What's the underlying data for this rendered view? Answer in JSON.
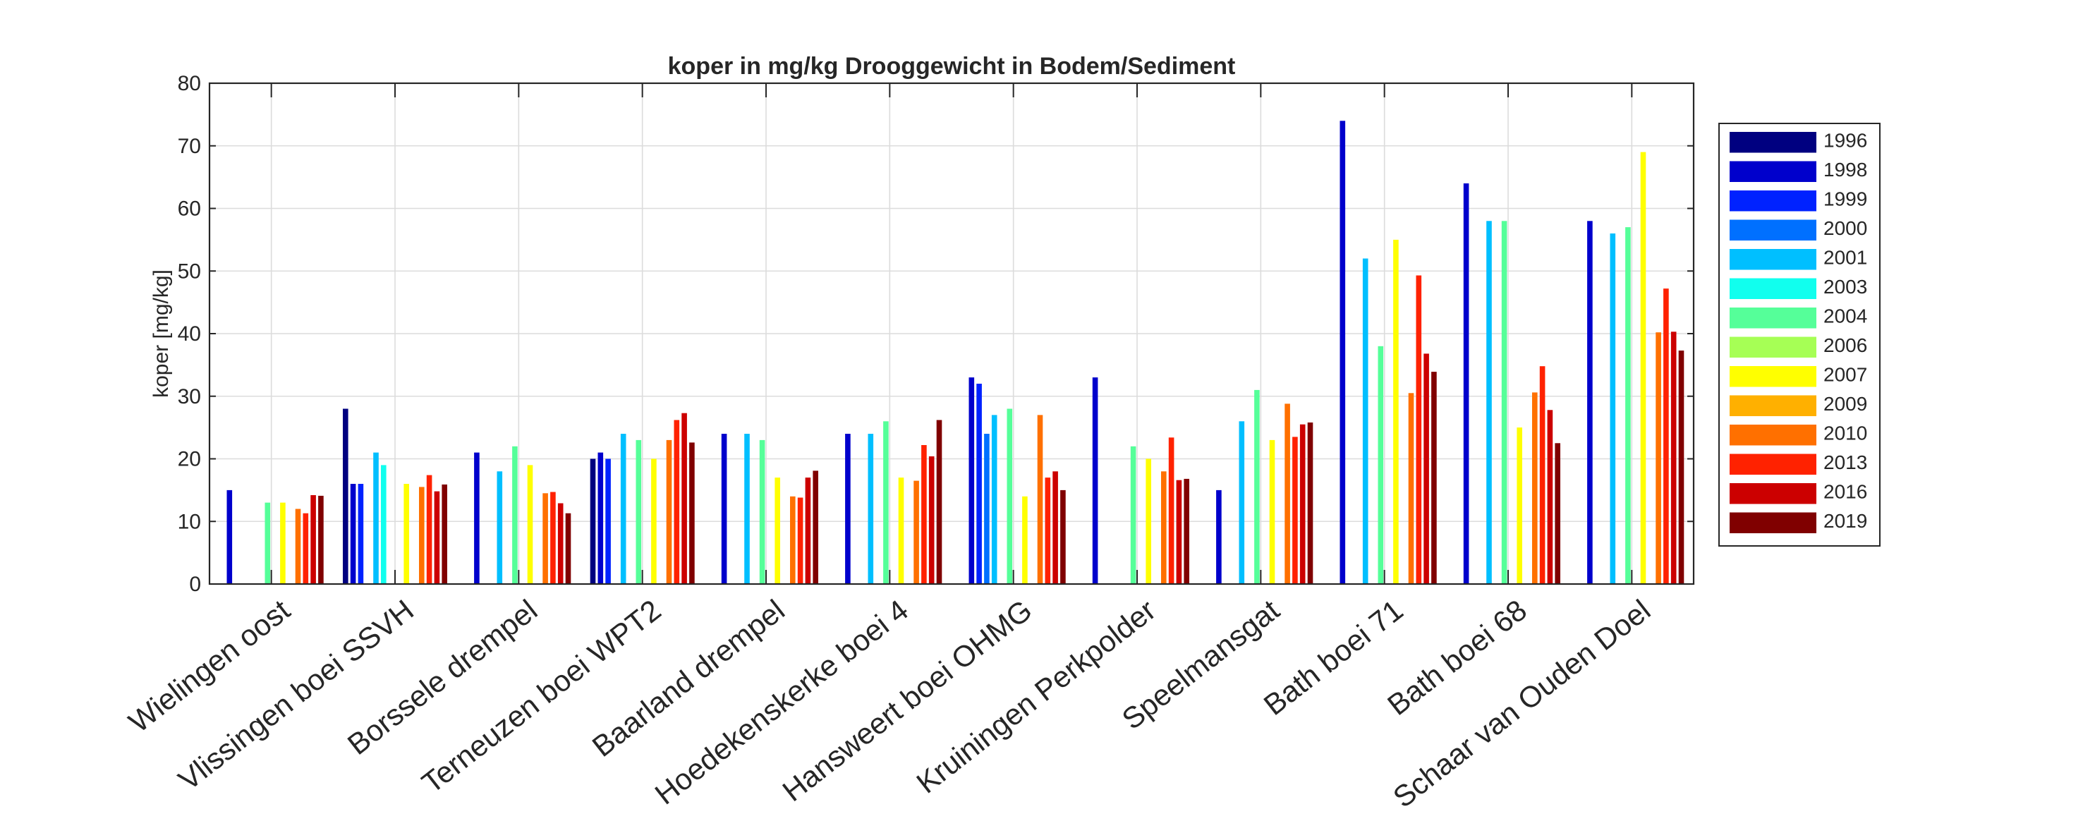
{
  "chart_data": {
    "type": "bar",
    "title": "koper in mg/kg Drooggewicht in Bodem/Sediment",
    "xlabel": "",
    "ylabel": "koper [mg/kg]",
    "ylim": [
      0,
      80
    ],
    "yticks": [
      0,
      10,
      20,
      30,
      40,
      50,
      60,
      70,
      80
    ],
    "grid": true,
    "legend_position": "right",
    "categories": [
      "Wielingen oost",
      "Vlissingen boei SSVH",
      "Borssele drempel",
      "Terneuzen boei WPT2",
      "Baarland drempel",
      "Hoedekenskerke boei 4",
      "Hansweert boei OHMG",
      "Kruiningen Perkpolder",
      "Speelmansgat",
      "Bath boei 71",
      "Bath boei 68",
      "Schaar van Ouden Doel"
    ],
    "series": [
      {
        "name": "1996",
        "color": "#000080",
        "values": [
          null,
          28,
          null,
          20,
          null,
          null,
          null,
          null,
          null,
          null,
          null,
          null
        ]
      },
      {
        "name": "1998",
        "color": "#0000CC",
        "values": [
          15,
          16,
          21,
          21,
          24,
          24,
          33,
          33,
          15,
          74,
          64,
          58
        ]
      },
      {
        "name": "1999",
        "color": "#0022FF",
        "values": [
          null,
          16,
          null,
          20,
          null,
          null,
          32,
          null,
          null,
          null,
          null,
          null
        ]
      },
      {
        "name": "2000",
        "color": "#0070FF",
        "values": [
          null,
          null,
          null,
          null,
          null,
          null,
          24,
          null,
          null,
          null,
          null,
          null
        ]
      },
      {
        "name": "2001",
        "color": "#00BFFF",
        "values": [
          null,
          21,
          18,
          24,
          24,
          24,
          27,
          null,
          26,
          52,
          58,
          56
        ]
      },
      {
        "name": "2003",
        "color": "#11FFEE",
        "values": [
          null,
          19,
          null,
          null,
          null,
          null,
          null,
          null,
          null,
          null,
          null,
          null
        ]
      },
      {
        "name": "2004",
        "color": "#55FF99",
        "values": [
          13,
          null,
          22,
          23,
          23,
          26,
          28,
          22,
          31,
          38,
          58,
          57
        ]
      },
      {
        "name": "2006",
        "color": "#A6FF55",
        "values": [
          null,
          null,
          null,
          null,
          null,
          null,
          null,
          null,
          null,
          null,
          null,
          null
        ]
      },
      {
        "name": "2007",
        "color": "#FFFF00",
        "values": [
          13,
          16,
          19,
          20,
          17,
          17,
          14,
          20,
          23,
          55,
          25,
          69
        ]
      },
      {
        "name": "2009",
        "color": "#FFB000",
        "values": [
          null,
          null,
          null,
          null,
          null,
          null,
          null,
          null,
          null,
          null,
          null,
          null
        ]
      },
      {
        "name": "2010",
        "color": "#FF7000",
        "values": [
          12,
          15.5,
          14.5,
          23,
          14,
          16.5,
          27,
          18,
          28.8,
          30.5,
          30.6,
          40.2
        ]
      },
      {
        "name": "2013",
        "color": "#FF2200",
        "values": [
          11.3,
          17.4,
          14.7,
          26.2,
          13.8,
          22.2,
          17,
          23.4,
          23.5,
          49.3,
          34.8,
          47.2
        ]
      },
      {
        "name": "2016",
        "color": "#CC0000",
        "values": [
          14.2,
          14.8,
          12.9,
          27.3,
          17,
          20.4,
          18,
          16.6,
          25.5,
          36.8,
          27.8,
          40.3
        ]
      },
      {
        "name": "2019",
        "color": "#800000",
        "values": [
          14.1,
          15.9,
          11.3,
          22.6,
          18.1,
          26.2,
          15,
          16.8,
          25.8,
          33.9,
          22.5,
          37.3
        ]
      }
    ]
  }
}
